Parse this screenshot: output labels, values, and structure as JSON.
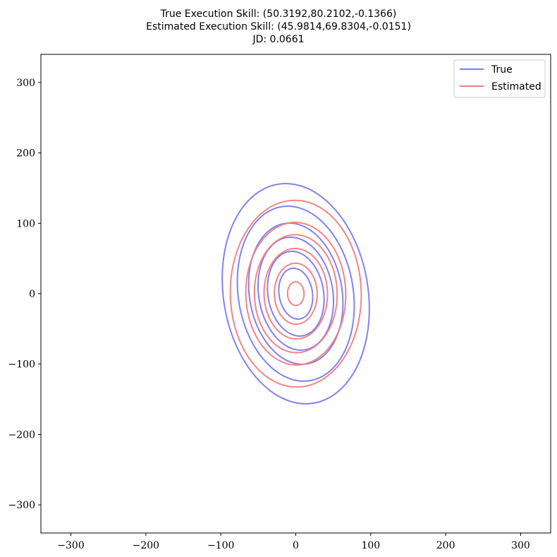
{
  "chart_data": {
    "type": "line",
    "title_lines": [
      "True Execution Skill: (50.3192,80.2102,-0.1366)",
      "Estimated Execution Skill: (45.9814,69.8304,-0.0151)",
      "JD: 0.0661"
    ],
    "xlim": [
      -340,
      340
    ],
    "ylim": [
      -340,
      340
    ],
    "xticks": [
      -300,
      -200,
      -100,
      0,
      100,
      200,
      300
    ],
    "yticks": [
      300,
      200,
      100,
      0,
      -100,
      -200,
      -300
    ],
    "legend": {
      "position": "top-right",
      "entries": [
        "True",
        "Estimated"
      ]
    },
    "series": [
      {
        "name": "True",
        "color": "#7b7bf0",
        "sigma_x": 50.3192,
        "sigma_y": 80.2102,
        "rho": -0.1366,
        "contour_scales": [
          0.45,
          0.75,
          1.0,
          1.25,
          1.55,
          1.95
        ]
      },
      {
        "name": "Estimated",
        "color": "#f08080",
        "sigma_x": 45.9814,
        "sigma_y": 69.8304,
        "rho": -0.0151,
        "contour_scales": [
          0.24,
          0.62,
          0.92,
          1.2,
          1.45,
          1.9
        ]
      }
    ]
  }
}
